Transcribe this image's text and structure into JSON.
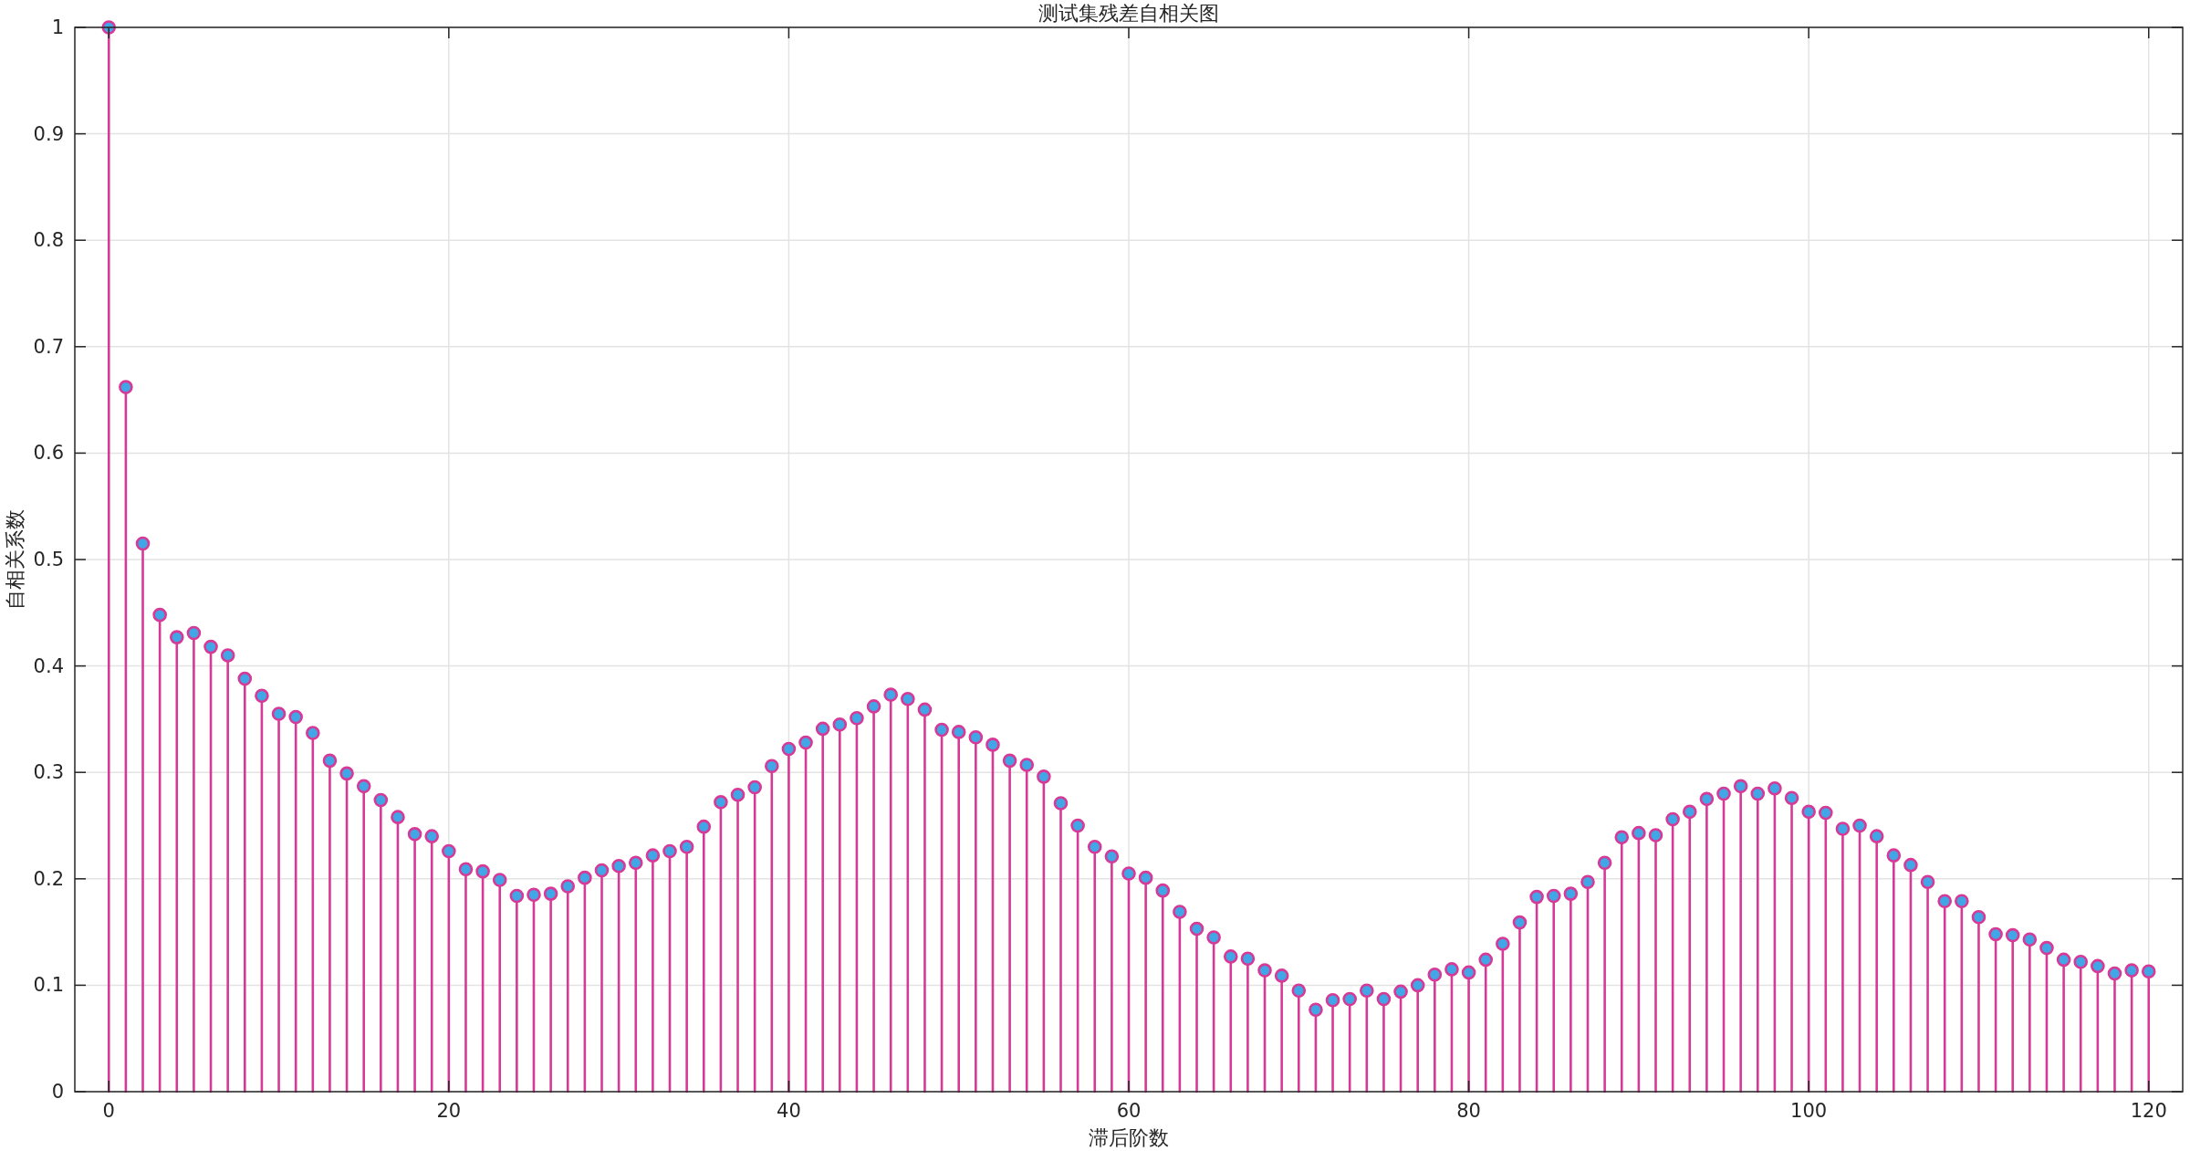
{
  "chart_data": {
    "type": "lollipop",
    "title": "测试集残差自相关图",
    "xlabel": "滞后阶数",
    "ylabel": "自相关系数",
    "x": [
      0,
      1,
      2,
      3,
      4,
      5,
      6,
      7,
      8,
      9,
      10,
      11,
      12,
      13,
      14,
      15,
      16,
      17,
      18,
      19,
      20,
      21,
      22,
      23,
      24,
      25,
      26,
      27,
      28,
      29,
      30,
      31,
      32,
      33,
      34,
      35,
      36,
      37,
      38,
      39,
      40,
      41,
      42,
      43,
      44,
      45,
      46,
      47,
      48,
      49,
      50,
      51,
      52,
      53,
      54,
      55,
      56,
      57,
      58,
      59,
      60,
      61,
      62,
      63,
      64,
      65,
      66,
      67,
      68,
      69,
      70,
      71,
      72,
      73,
      74,
      75,
      76,
      77,
      78,
      79,
      80,
      81,
      82,
      83,
      84,
      85,
      86,
      87,
      88,
      89,
      90,
      91,
      92,
      93,
      94,
      95,
      96,
      97,
      98,
      99,
      100,
      101,
      102,
      103,
      104,
      105,
      106,
      107,
      108,
      109,
      110,
      111,
      112,
      113,
      114,
      115,
      116,
      117,
      118,
      119,
      120
    ],
    "series": [
      {
        "color": "#d63a96",
        "values": [
          1.0,
          0.662,
          0.515,
          0.448,
          0.427,
          0.431,
          0.418,
          0.41,
          0.388,
          0.372,
          0.355,
          0.352,
          0.337,
          0.311,
          0.299,
          0.287,
          0.274,
          0.258,
          0.242,
          0.24,
          0.226,
          0.209,
          0.207,
          0.199,
          0.184,
          0.185,
          0.186,
          0.193,
          0.201,
          0.208,
          0.212,
          0.215,
          0.222,
          0.226,
          0.23,
          0.249,
          0.272,
          0.279,
          0.286,
          0.306,
          0.322,
          0.328,
          0.341,
          0.345,
          0.351,
          0.362,
          0.373,
          0.369,
          0.359,
          0.34,
          0.338,
          0.333,
          0.326,
          0.311,
          0.307,
          0.296,
          0.271,
          0.25,
          0.23,
          0.221,
          0.205,
          0.201,
          0.189,
          0.169,
          0.153,
          0.145,
          0.127,
          0.125,
          0.114,
          0.109,
          0.095,
          0.077,
          0.086,
          0.087,
          0.095,
          0.087,
          0.094,
          0.1,
          0.11,
          0.115,
          0.112,
          0.124,
          0.139,
          0.159,
          0.183,
          0.184,
          0.186,
          0.197,
          0.215,
          0.239,
          0.243,
          0.241,
          0.256,
          0.263,
          0.275,
          0.28,
          0.287,
          0.28,
          0.285,
          0.276,
          0.263,
          0.262,
          0.247,
          0.25,
          0.24,
          0.222,
          0.213,
          0.197,
          0.179,
          0.179,
          0.164,
          0.148,
          0.147,
          0.143,
          0.135,
          0.124,
          0.122,
          0.118,
          0.111,
          0.114,
          0.113
        ]
      }
    ],
    "xlim": [
      -2,
      122
    ],
    "ylim": [
      0,
      1
    ],
    "xticks": [
      0,
      20,
      40,
      60,
      80,
      100,
      120
    ],
    "yticks": [
      0,
      0.1,
      0.2,
      0.3,
      0.4,
      0.5,
      0.6,
      0.7,
      0.8,
      0.9,
      1
    ],
    "grid": true,
    "marker": "circle",
    "line_style": "solid"
  }
}
